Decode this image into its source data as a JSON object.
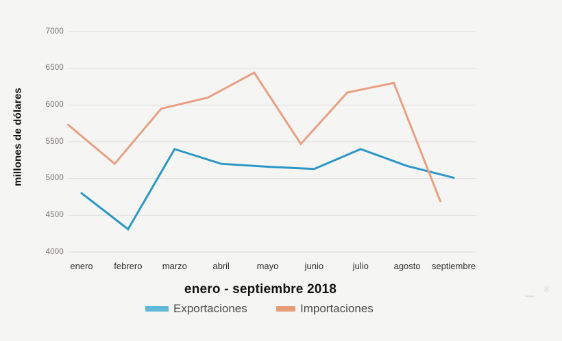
{
  "chart_data": {
    "type": "line",
    "title": "enero - septiembre 2018",
    "ylabel": "millones de dólares",
    "xlabel": "",
    "categories": [
      "enero",
      "febrero",
      "marzo",
      "abril",
      "mayo",
      "junio",
      "julio",
      "agosto",
      "septiembre"
    ],
    "y_ticks": [
      7000,
      6500,
      6000,
      5500,
      5000,
      4500,
      4000
    ],
    "ylim": [
      4000,
      7000
    ],
    "grid": "horizontal",
    "legend_position": "bottom",
    "series": [
      {
        "name": "Exportaciones",
        "color": "#2b97c5",
        "values": [
          4800,
          4310,
          5400,
          5200,
          5160,
          5130,
          5400,
          5170,
          5010
        ]
      },
      {
        "name": "Importaciones",
        "color": "#e8a083",
        "values": [
          5730,
          5200,
          5950,
          6100,
          6440,
          5470,
          6170,
          6300,
          4690
        ]
      }
    ],
    "legend": [
      {
        "label": "Exportaciones",
        "swatch": "#5fb8d6"
      },
      {
        "label": "Importaciones",
        "swatch": "#e89d79"
      }
    ]
  },
  "colors": {
    "background": "#f5f5f4",
    "gridline": "#dcdcdc",
    "tick_text": "#767472",
    "month_text": "#2f2f2f"
  },
  "watermark": {
    "icon": "expand-arrows-icon"
  }
}
